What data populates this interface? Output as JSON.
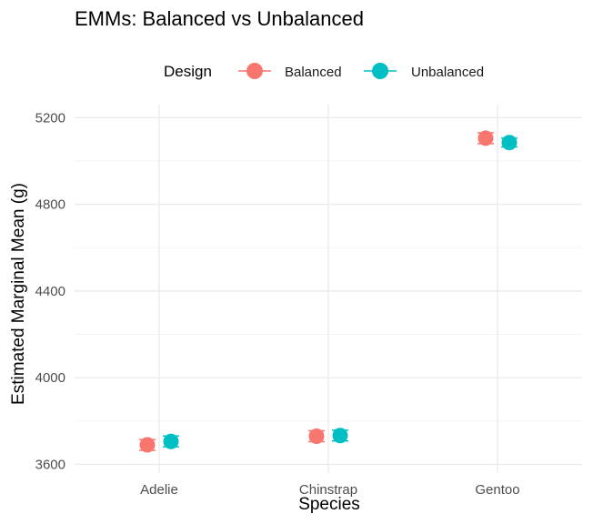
{
  "chart_data": {
    "type": "scatter",
    "title": "EMMs: Balanced vs Unbalanced",
    "xlabel": "Species",
    "ylabel": "Estimated Marginal Mean (g)",
    "categories": [
      "Adelie",
      "Chinstrap",
      "Gentoo"
    ],
    "ylim": [
      3560,
      5260
    ],
    "yticks": [
      3600,
      4000,
      4400,
      4800,
      5200
    ],
    "yminor": [
      3800,
      4200,
      4600,
      5000
    ],
    "grid": true,
    "legend": {
      "title": "Design",
      "position": "top"
    },
    "series": [
      {
        "name": "Balanced",
        "color": "#F8766D",
        "values": [
          3690,
          3730,
          5105
        ],
        "lower": [
          3665,
          3705,
          5080
        ],
        "upper": [
          3715,
          3755,
          5130
        ]
      },
      {
        "name": "Unbalanced",
        "color": "#00BFC4",
        "values": [
          3706,
          3733,
          5085
        ],
        "lower": [
          3681,
          3708,
          5065
        ],
        "upper": [
          3731,
          3758,
          5105
        ]
      }
    ]
  }
}
